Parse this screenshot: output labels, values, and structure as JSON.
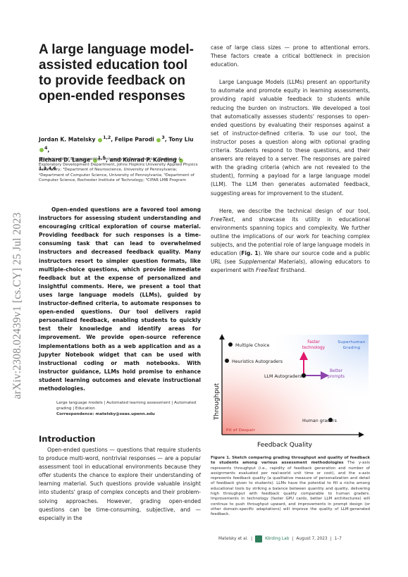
{
  "arxiv_stamp": "arXiv:2308.02439v1  [cs.CY]  25 Jul 2023",
  "title": "A large language model-assisted education tool to provide feedback on open-ended responses",
  "authors": {
    "line1_a": "Jordan K. Matelsky",
    "line1_a_sup": "1,2",
    "line1_b": ", Felipe Parodi",
    "line1_b_sup": "3",
    "line1_c": ", Tony Liu",
    "line1_c_sup": "4",
    "line2_a": "Richard D. Lange",
    "line2_a_sup": "1,5",
    "line2_b": ", and Konrad P. Kording",
    "line2_b_sup": "1,3,4,6"
  },
  "affiliations": "¹Department of Bioengineering, University of Pennsylvania; ²Research & Exploratory Development Department, Johns Hopkins University Applied Physics Laboratory; ³Department of Neuroscience, University of Pennsylvania; ⁴Department of Computer Science, University of Pennsylvania; ⁵Department of Computer Science, Rochester Institute of Technology; ⁶CIFAR LMB Program",
  "abstract": "Open-ended questions are a favored tool among instructors for assessing student understanding and encouraging critical exploration of course material. Providing feedback for such responses is a time-consuming task that can lead to overwhelmed instructors and decreased feedback quality. Many instructors resort to simpler question formats, like multiple-choice questions, which provide immediate feedback but at the expense of personalized and insightful comments. Here, we present a tool that uses large language models (LLMs), guided by instructor-defined criteria, to automate responses to open-ended questions. Our tool delivers rapid personalized feedback, enabling students to quickly test their knowledge and identify areas for improvement. We provide open-source reference implementations both as a web application and as a Jupyter Notebook widget that can be used with instructional coding or math notebooks. With instructor guidance, LLMs hold promise to enhance student learning outcomes and elevate instructional methodologies.",
  "keywords": "Large language models | Automated learning assessment | Automated grading | Education",
  "correspondence": "Correspondence: matelsky@seas.upenn.edu",
  "intro_heading": "Introduction",
  "intro_text": "Open-ended questions — questions that require students to produce multi-word, nontrivial responses — are a popular assessment tool in educational environments because they offer students the chance to explore their understanding of learning material. Such questions provide valuable insight into students' grasp of complex concepts and their problem-solving approaches. However, grading open-ended questions can be time-consuming, subjective, and — especially in the",
  "right_p1": "case of large class sizes — prone to attentional errors. These factors create a critical bottleneck in precision education.",
  "right_p2": "Large Language Models (LLMs) present an opportunity to automate and promote equity in learning assessments, providing rapid valuable feedback to students while reducing the burden on instructors. We developed a tool that automatically assesses students' responses to open-ended questions by evaluating their responses against a set of instructor-defined criteria. To use our tool, the instructor poses a question along with optional grading criteria. Students respond to these questions, and their answers are relayed to a server. The responses are paired with the grading criteria (which are not revealed to the student), forming a payload for a large language model (LLM). The LLM then generates automated feedback, suggesting areas for improvement to the student.",
  "right_p3_a": "Here, we describe the technical design of our tool, ",
  "right_p3_tool": "FreeText",
  "right_p3_b": ", and showcase its utility in educational environments spanning topics and complexity. We further outline the implications of our work for teaching complex subjects, and the potential role of large language models in education (",
  "right_p3_figref": "Fig. 1",
  "right_p3_c": "). We share our source code and a public URL (see ",
  "right_p3_supp": "Supplemental Materials",
  "right_p3_d": "), allowing educators to experiment with ",
  "right_p3_tool2": "FreeText",
  "right_p3_e": " firsthand.",
  "figure": {
    "ylabel": "Throughput",
    "xlabel": "Feedback Quality",
    "superhuman_1": "Superhuman",
    "superhuman_2": "Grading",
    "pit": "Pit of Despair",
    "points": {
      "multiple_choice": "Multiple Choice",
      "heuristics": "Heuristics Autograders",
      "llm": "LLM Autograders",
      "human": "Human graders"
    },
    "faster_1": "Faster",
    "faster_2": "technology",
    "better_1": "Better",
    "better_2": "prompts",
    "colors": {
      "accent": "#e0196e",
      "purple": "#8e44ad",
      "despair": "#f28b82",
      "superhuman": "#2a64c8"
    }
  },
  "caption_title": "Figure 1. Sketch comparing grading throughput and quality of feedback to students among various assessment methodologies",
  "caption_body": "The y-axis represents throughput (i.e., rapidity of feedback generation and number of assignments evaluated per real-world unit time or cost), and the x-axis represents feedback quality (a qualitative measure of personalization and detail of feedback given to students). LLMs have the potential to fill a niche among educational tools by striking a balance between quantity and quality, delivering high throughput with feedback quality comparable to human graders. Improvements in technology (faster GPU cards, better LLM architectures) will continue to push throughput upward, and improvements in prompt design (or other domain-specific adaptations) will improve the quality of LLM-generated feedback.",
  "footer": {
    "authors": "Matelsky et al.",
    "lab": "Körding Lab",
    "date": "August 7, 2023",
    "pages": "1–7"
  }
}
